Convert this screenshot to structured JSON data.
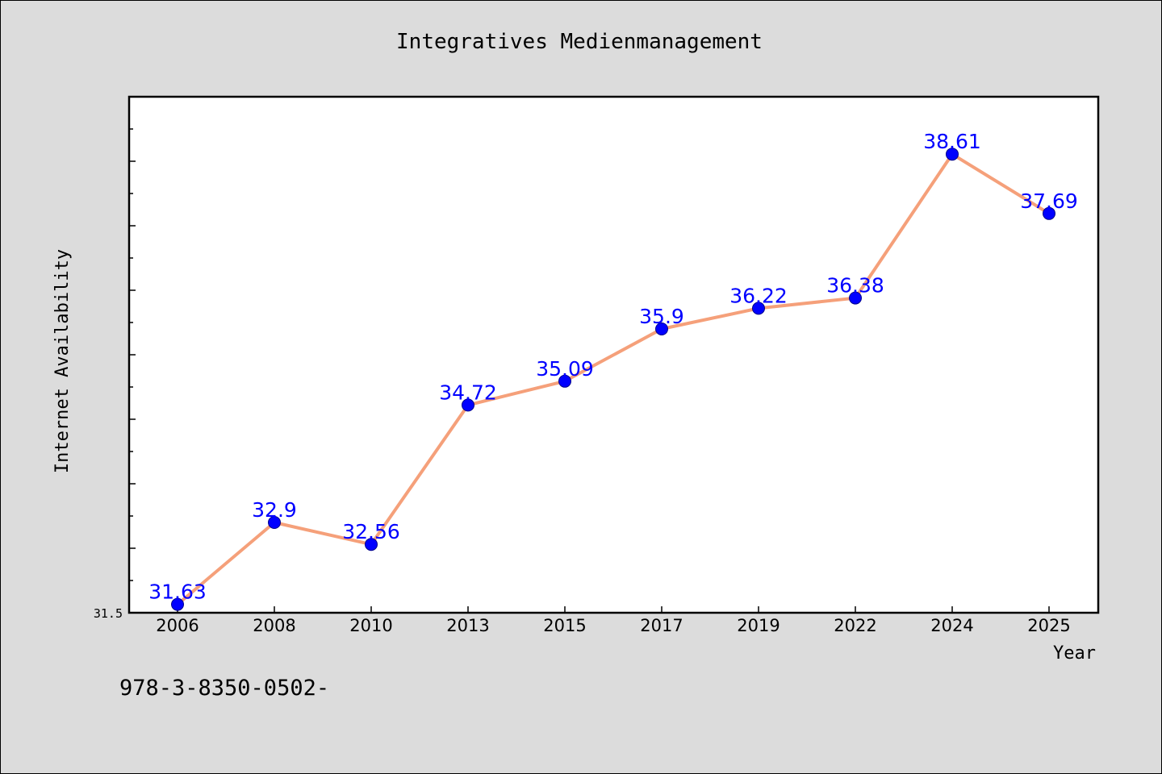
{
  "chart_data": {
    "type": "line",
    "title": "Integratives Medienmanagement",
    "xlabel": "Year",
    "ylabel": "Internet Availability",
    "categories": [
      "2006",
      "2008",
      "2010",
      "2013",
      "2015",
      "2017",
      "2019",
      "2022",
      "2024",
      "2025"
    ],
    "series": [
      {
        "values": [
          31.63,
          32.9,
          32.56,
          34.72,
          35.09,
          35.9,
          36.22,
          36.38,
          38.61,
          37.69
        ]
      }
    ],
    "ylim": [
      31.5,
      39.5
    ],
    "ytick_labels": [
      "31.5"
    ],
    "grid": false,
    "line_color": "#f5a07a",
    "marker_color": "#0000ff",
    "label_color": "#0000ff"
  },
  "footnote": "978-3-8350-0502-"
}
